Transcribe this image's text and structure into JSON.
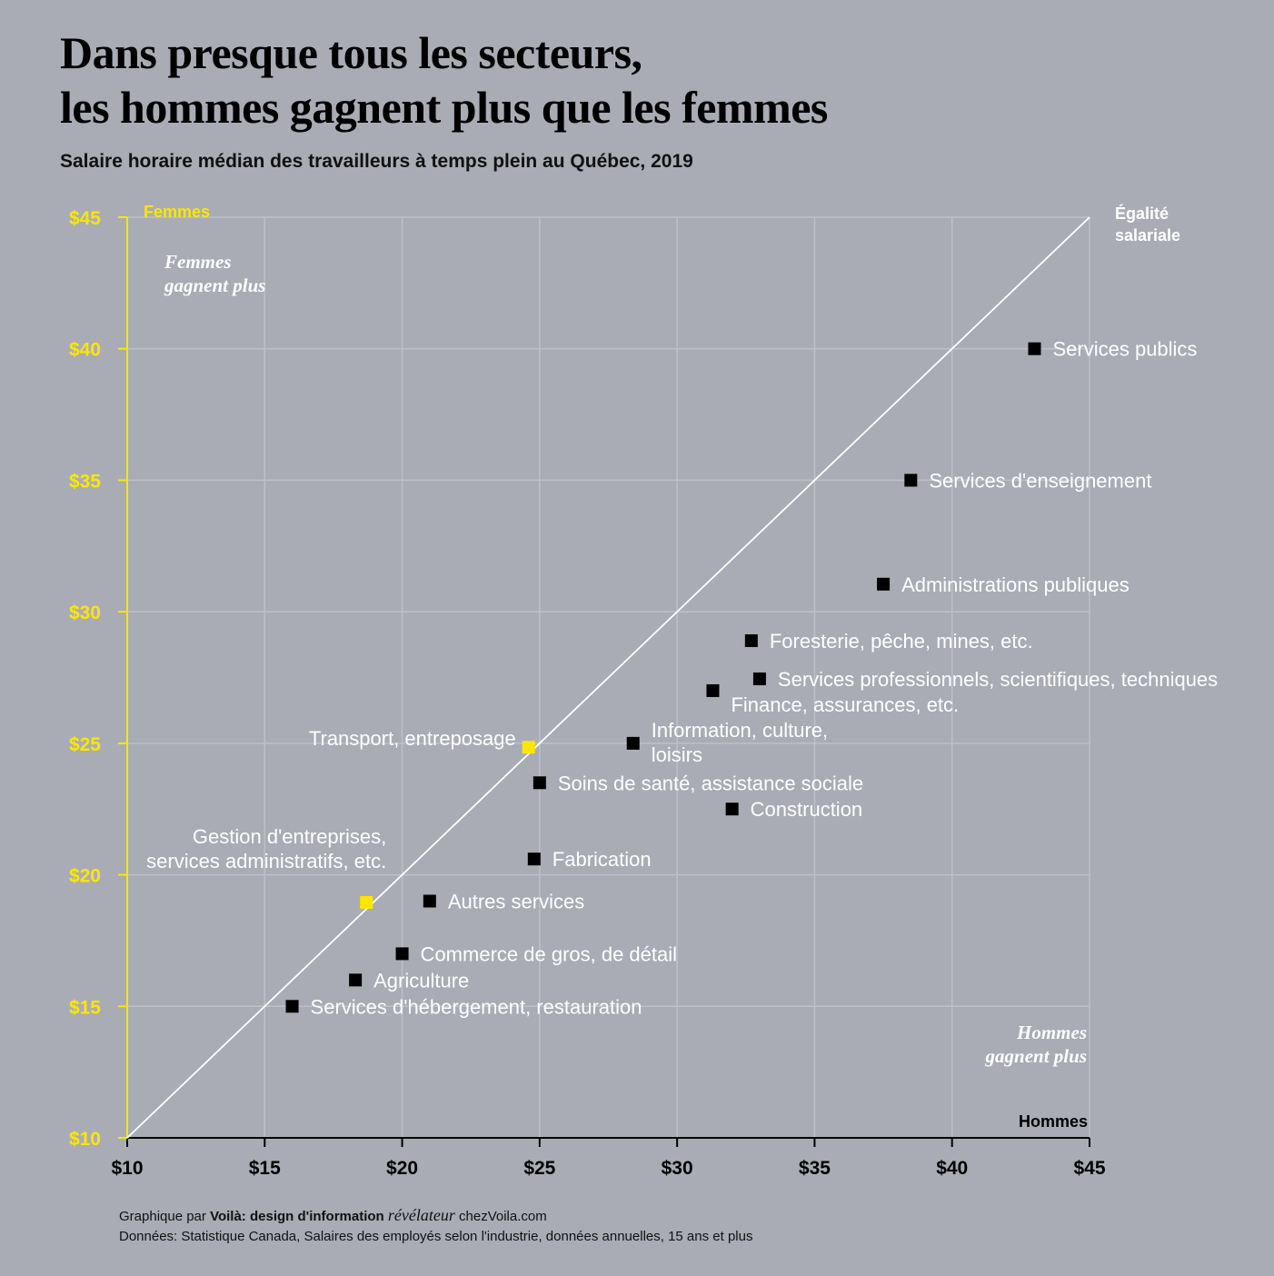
{
  "title_lines": [
    "Dans presque tous les secteurs,",
    "les hommes gagnent plus que les femmes"
  ],
  "subtitle": "Salaire horaire médian des travailleurs à temps plein au Québec, 2019",
  "chart_data": {
    "type": "scatter",
    "xlabel": "Hommes",
    "ylabel": "Femmes",
    "xlim": [
      10,
      45
    ],
    "ylim": [
      10,
      45
    ],
    "x_ticks": [
      10,
      15,
      20,
      25,
      30,
      35,
      40,
      45
    ],
    "y_ticks": [
      10,
      15,
      20,
      25,
      30,
      35,
      40,
      45
    ],
    "x_tick_labels": [
      "$10",
      "$15",
      "$20",
      "$25",
      "$30",
      "$35",
      "$40",
      "$45"
    ],
    "y_tick_labels": [
      "$10",
      "$15",
      "$20",
      "$25",
      "$30",
      "$35",
      "$40",
      "$45"
    ],
    "grid": true,
    "reference_line": {
      "label": [
        "Égalité",
        "salariale"
      ],
      "from": [
        10,
        10
      ],
      "to": [
        45,
        45
      ]
    },
    "annotations": {
      "women_earn_more": [
        "Femmes",
        "gagnent plus"
      ],
      "men_earn_more": [
        "Hommes",
        "gagnent plus"
      ]
    },
    "colors": {
      "axis_y": "#ffe600",
      "point_default": "#000000",
      "point_highlight": "#ffe600",
      "label": "#ffffff"
    },
    "points": [
      {
        "label": [
          "Services publics"
        ],
        "x": 43.0,
        "y": 40.0,
        "highlight": false,
        "anchor": "right"
      },
      {
        "label": [
          "Services d'enseignement"
        ],
        "x": 38.5,
        "y": 35.0,
        "highlight": false,
        "anchor": "right"
      },
      {
        "label": [
          "Administrations publiques"
        ],
        "x": 37.5,
        "y": 31.05,
        "highlight": false,
        "anchor": "right"
      },
      {
        "label": [
          "Foresterie, pêche, mines, etc."
        ],
        "x": 32.7,
        "y": 28.9,
        "highlight": false,
        "anchor": "right"
      },
      {
        "label": [
          "Services professionnels, scientifiques, techniques"
        ],
        "x": 33.0,
        "y": 27.45,
        "highlight": false,
        "anchor": "right"
      },
      {
        "label": [
          "Finance, assurances, etc."
        ],
        "x": 31.3,
        "y": 27.0,
        "highlight": false,
        "anchor": "below-right"
      },
      {
        "label": [
          "Transport, entreposage"
        ],
        "x": 24.6,
        "y": 24.85,
        "highlight": true,
        "anchor": "left"
      },
      {
        "label": [
          "Information, culture,",
          "loisirs"
        ],
        "x": 28.4,
        "y": 25.0,
        "highlight": false,
        "anchor": "right"
      },
      {
        "label": [
          "Soins de santé, assistance sociale"
        ],
        "x": 25.0,
        "y": 23.5,
        "highlight": false,
        "anchor": "right"
      },
      {
        "label": [
          "Construction"
        ],
        "x": 32.0,
        "y": 22.5,
        "highlight": false,
        "anchor": "right"
      },
      {
        "label": [
          "Fabrication"
        ],
        "x": 24.8,
        "y": 20.6,
        "highlight": false,
        "anchor": "right"
      },
      {
        "label": [
          "Gestion d'entreprises,",
          "services administratifs, etc."
        ],
        "x": 18.7,
        "y": 18.95,
        "highlight": true,
        "anchor": "above-left"
      },
      {
        "label": [
          "Autres services"
        ],
        "x": 21.0,
        "y": 19.0,
        "highlight": false,
        "anchor": "right"
      },
      {
        "label": [
          "Commerce de gros, de détail"
        ],
        "x": 20.0,
        "y": 17.0,
        "highlight": false,
        "anchor": "right"
      },
      {
        "label": [
          "Agriculture"
        ],
        "x": 18.3,
        "y": 16.0,
        "highlight": false,
        "anchor": "right"
      },
      {
        "label": [
          "Services d'hébergement, restauration"
        ],
        "x": 16.0,
        "y": 15.0,
        "highlight": false,
        "anchor": "right"
      }
    ]
  },
  "footer": {
    "line1_prefix": "Graphique par ",
    "line1_bold": "Voilà: design d'information",
    "line1_italic": "révélateur",
    "line1_suffix": "chezVoila.com",
    "line2": "Données: Statistique Canada, Salaires des employés selon l'industrie, données annuelles, 15 ans et plus"
  }
}
